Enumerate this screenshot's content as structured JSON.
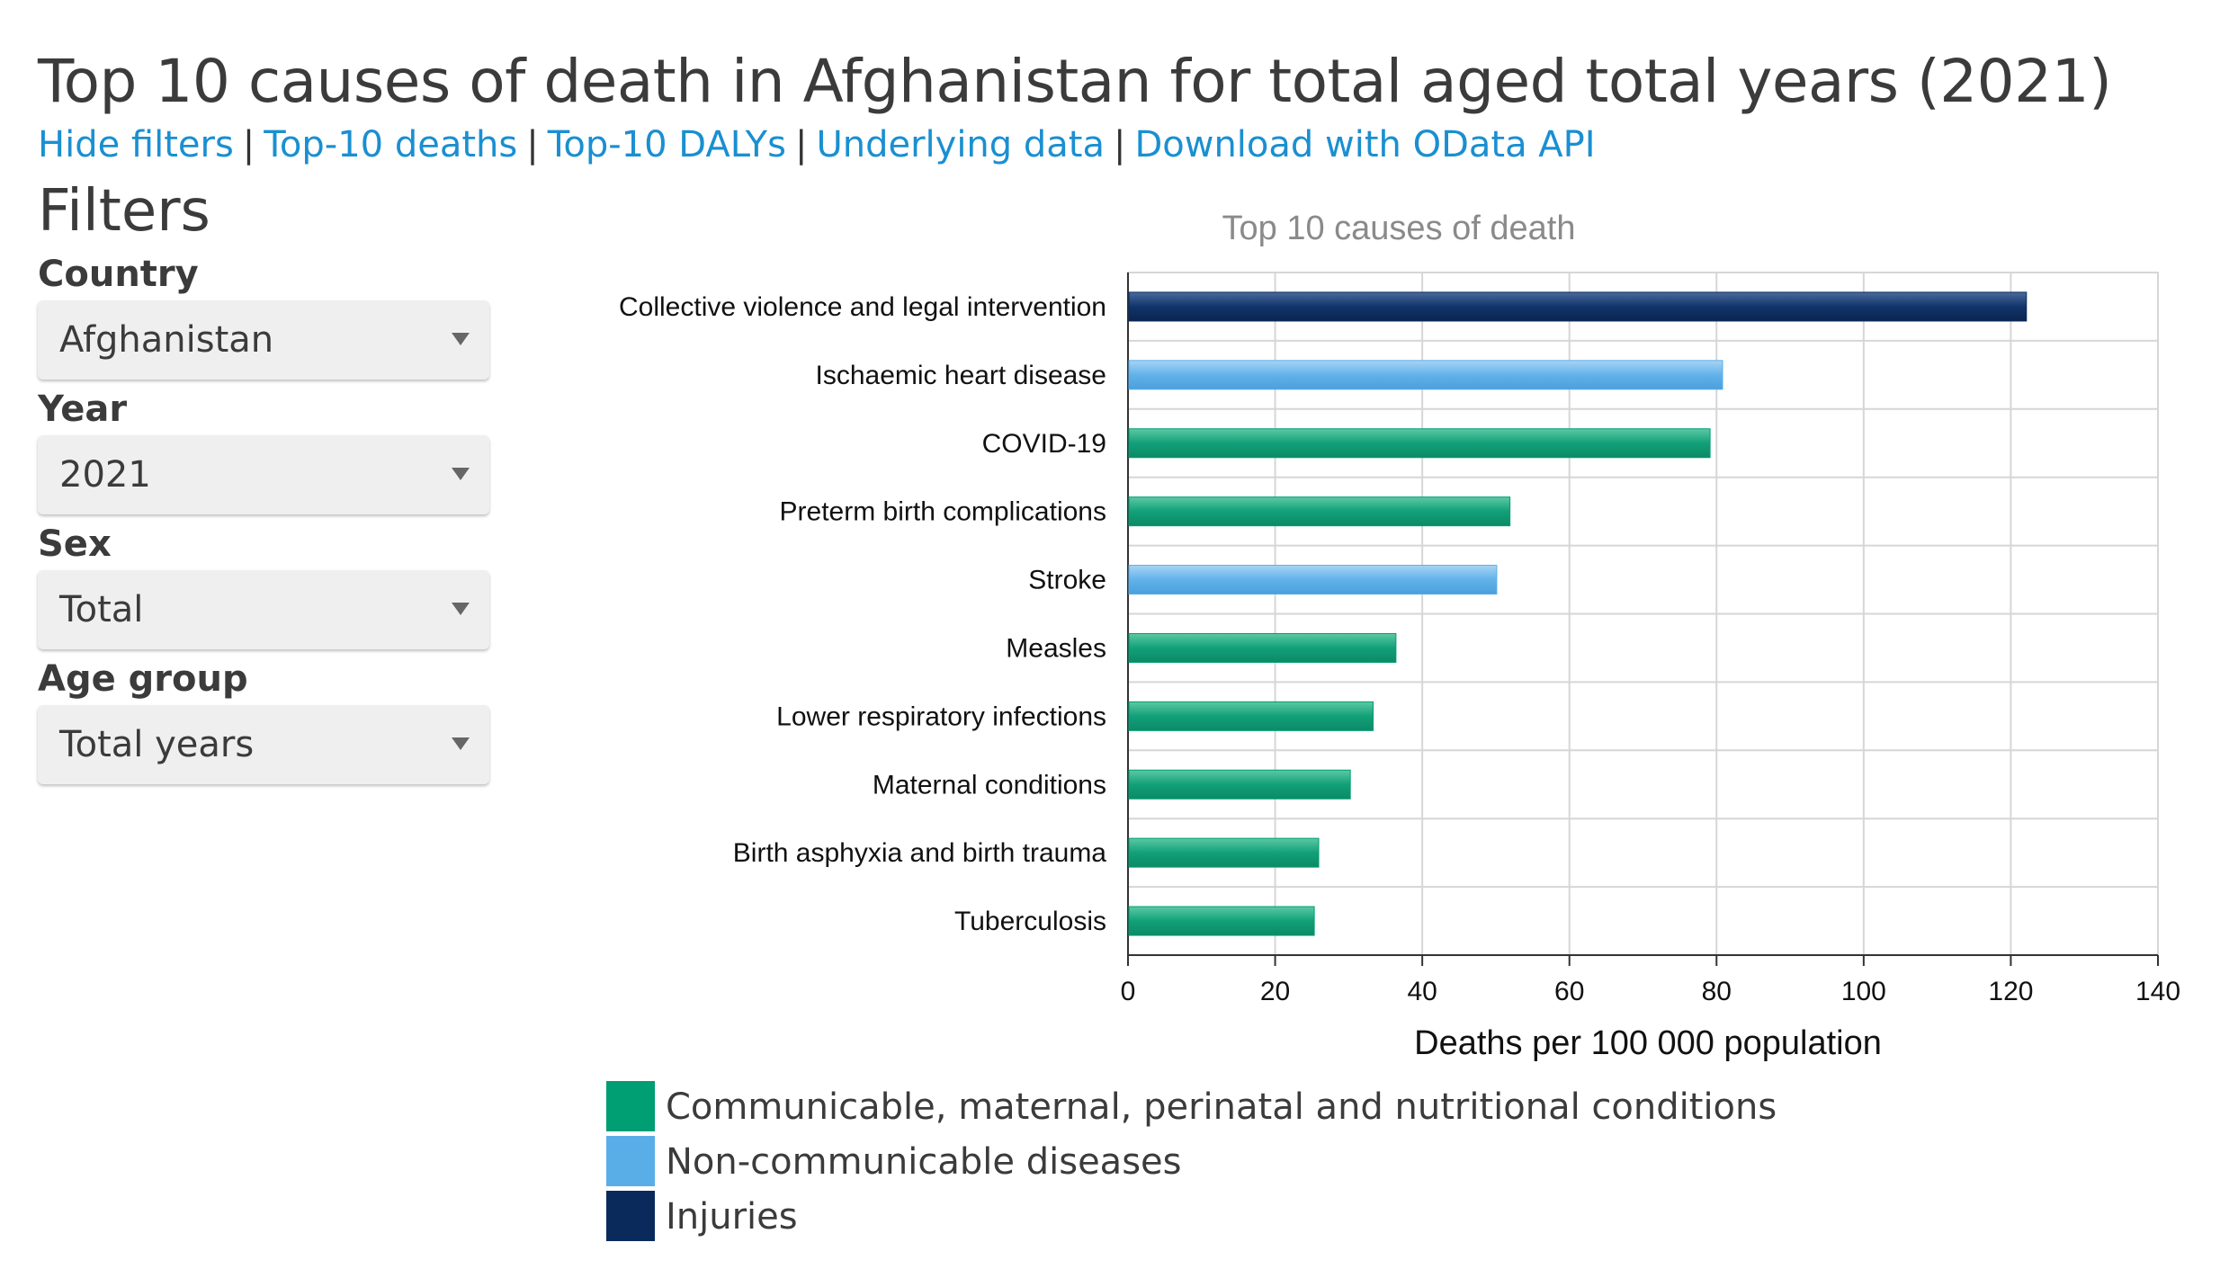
{
  "page": {
    "title": "Top 10 causes of death in Afghanistan for total aged total years (2021)"
  },
  "nav": {
    "links": [
      "Hide filters",
      "Top-10 deaths",
      "Top-10 DALYs",
      "Underlying data",
      "Download with OData API"
    ],
    "separator": "|"
  },
  "filters": {
    "heading": "Filters",
    "country": {
      "label": "Country",
      "value": "Afghanistan"
    },
    "year": {
      "label": "Year",
      "value": "2021"
    },
    "sex": {
      "label": "Sex",
      "value": "Total"
    },
    "age_group": {
      "label": "Age group",
      "value": "Total years"
    }
  },
  "legend": {
    "items": [
      {
        "label": "Communicable, maternal, perinatal and nutritional conditions",
        "color": "#009e73"
      },
      {
        "label": "Non-communicable diseases",
        "color": "#5aaee8"
      },
      {
        "label": "Injuries",
        "color": "#0a2a5c"
      }
    ]
  },
  "chart_data": {
    "type": "bar",
    "orientation": "horizontal",
    "title": "Top 10 causes of death",
    "xlabel": "Deaths per 100 000 population",
    "ylabel": "",
    "xlim": [
      0,
      140
    ],
    "xticks": [
      0,
      20,
      40,
      60,
      80,
      100,
      120,
      140
    ],
    "grid": true,
    "legend_position": "bottom-left",
    "categories": [
      "Collective violence and legal intervention",
      "Ischaemic heart disease",
      "COVID-19",
      "Preterm birth complications",
      "Stroke",
      "Measles",
      "Lower respiratory infections",
      "Maternal conditions",
      "Birth asphyxia and birth trauma",
      "Tuberculosis"
    ],
    "values": [
      122,
      80.7,
      79,
      51.8,
      50,
      36.3,
      33.2,
      30.1,
      25.8,
      25.2
    ],
    "groups": [
      "Injuries",
      "Non-communicable diseases",
      "Communicable, maternal, perinatal and nutritional conditions",
      "Communicable, maternal, perinatal and nutritional conditions",
      "Non-communicable diseases",
      "Communicable, maternal, perinatal and nutritional conditions",
      "Communicable, maternal, perinatal and nutritional conditions",
      "Communicable, maternal, perinatal and nutritional conditions",
      "Communicable, maternal, perinatal and nutritional conditions",
      "Communicable, maternal, perinatal and nutritional conditions"
    ],
    "group_colors": {
      "Communicable, maternal, perinatal and nutritional conditions": "#009e73",
      "Non-communicable diseases": "#5aaee8",
      "Injuries": "#0a2a5c"
    }
  }
}
